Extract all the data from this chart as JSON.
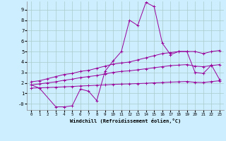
{
  "xlabel": "Windchill (Refroidissement éolien,°C)",
  "bg_color": "#cceeff",
  "line_color": "#990099",
  "grid_color": "#aacccc",
  "x": [
    0,
    1,
    2,
    3,
    4,
    5,
    6,
    7,
    8,
    9,
    10,
    11,
    12,
    13,
    14,
    15,
    16,
    17,
    18,
    19,
    20,
    21,
    22,
    23
  ],
  "series_zigzag": [
    1.8,
    1.5,
    null,
    -0.3,
    -0.3,
    -0.2,
    1.4,
    1.2,
    0.3,
    3.1,
    4.1,
    5.0,
    8.0,
    7.5,
    9.7,
    9.3,
    5.8,
    4.7,
    5.0,
    5.0,
    3.0,
    2.9,
    3.7,
    2.3
  ],
  "series_upper": [
    2.1,
    2.2,
    2.4,
    2.6,
    2.8,
    2.9,
    3.1,
    3.2,
    3.4,
    3.6,
    3.8,
    3.9,
    4.0,
    4.2,
    4.4,
    4.6,
    4.8,
    4.9,
    5.0,
    5.0,
    5.0,
    4.8,
    5.0,
    5.1
  ],
  "series_mid": [
    1.8,
    1.9,
    2.0,
    2.1,
    2.25,
    2.35,
    2.5,
    2.6,
    2.7,
    2.85,
    3.0,
    3.1,
    3.15,
    3.25,
    3.35,
    3.45,
    3.55,
    3.65,
    3.7,
    3.75,
    3.6,
    3.55,
    3.65,
    3.75
  ],
  "series_lower": [
    1.5,
    1.52,
    1.55,
    1.58,
    1.62,
    1.65,
    1.7,
    1.73,
    1.77,
    1.8,
    1.85,
    1.88,
    1.9,
    1.93,
    1.96,
    2.0,
    2.03,
    2.07,
    2.1,
    2.13,
    2.05,
    2.03,
    2.12,
    2.2
  ],
  "ylim": [
    -0.6,
    9.8
  ],
  "xlim": [
    -0.5,
    23.5
  ],
  "yticks": [
    0,
    1,
    2,
    3,
    4,
    5,
    6,
    7,
    8,
    9
  ],
  "ytick_labels": [
    "-0",
    "1",
    "2",
    "3",
    "4",
    "5",
    "6",
    "7",
    "8",
    "9"
  ],
  "xticks": [
    0,
    1,
    2,
    3,
    4,
    5,
    6,
    7,
    8,
    9,
    10,
    11,
    12,
    13,
    14,
    15,
    16,
    17,
    18,
    19,
    20,
    21,
    22,
    23
  ]
}
